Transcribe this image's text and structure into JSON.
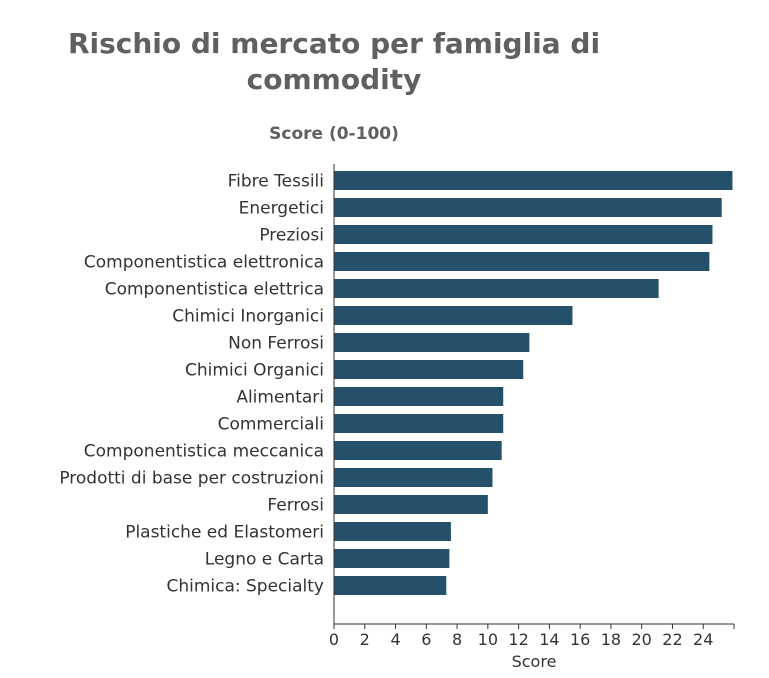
{
  "chart_data": {
    "type": "bar",
    "orientation": "horizontal",
    "title": "Rischio di mercato per famiglia di commodity",
    "subtitle": "Score (0-100)",
    "xlabel": "Score",
    "ylabel": "",
    "xlim": [
      0,
      26
    ],
    "xticks": [
      0,
      2,
      4,
      6,
      8,
      10,
      12,
      14,
      16,
      18,
      20,
      22,
      24
    ],
    "grid": false,
    "bar_color": "#245169",
    "categories": [
      "Fibre Tessili",
      "Energetici",
      "Preziosi",
      "Componentistica elettronica",
      "Componentistica elettrica",
      "Chimici Inorganici",
      "Non Ferrosi",
      "Chimici Organici",
      "Alimentari",
      "Commerciali",
      "Componentistica meccanica",
      "Prodotti di base per costruzioni",
      "Ferrosi",
      "Plastiche ed Elastomeri",
      "Legno e Carta",
      "Chimica: Specialty"
    ],
    "values": [
      25.9,
      25.2,
      24.6,
      24.4,
      21.1,
      15.5,
      12.7,
      12.3,
      11.0,
      11.0,
      10.9,
      10.3,
      10.0,
      7.6,
      7.5,
      7.3
    ]
  }
}
